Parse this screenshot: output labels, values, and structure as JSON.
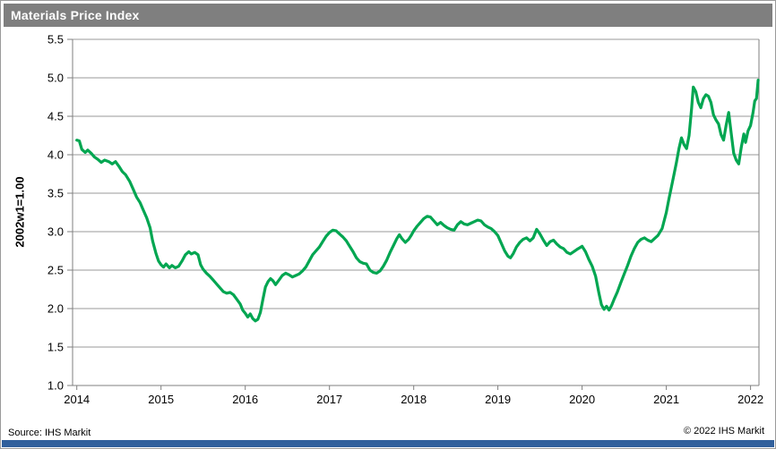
{
  "title": "Materials Price Index",
  "footer": {
    "source": "Source: IHS Markit",
    "copyright": "© 2022  IHS Markit"
  },
  "colors": {
    "line": "#00a651",
    "title_bar": "#7f7f7f",
    "title_text": "#ffffff",
    "grid": "#9a9a9a",
    "axis": "#7f7f7f",
    "bottom_bar": "#31609c"
  },
  "chart_data": {
    "type": "line",
    "title": "Materials Price Index",
    "xlabel": "",
    "ylabel": "2002w1=1.00",
    "ylim": [
      1.0,
      5.5
    ],
    "xlim": [
      2013.95,
      2022.1
    ],
    "yticks": [
      1.0,
      1.5,
      2.0,
      2.5,
      3.0,
      3.5,
      4.0,
      4.5,
      5.0,
      5.5
    ],
    "xticks": [
      2014,
      2015,
      2016,
      2017,
      2018,
      2019,
      2020,
      2021,
      2022
    ],
    "grid": "horizontal",
    "legend_position": "none",
    "series": [
      {
        "name": "Materials Price Index (2002w1=1.00)",
        "color": "#00a651",
        "points": [
          [
            2014.0,
            4.19
          ],
          [
            2014.03,
            4.18
          ],
          [
            2014.06,
            4.07
          ],
          [
            2014.1,
            4.03
          ],
          [
            2014.13,
            4.06
          ],
          [
            2014.17,
            4.02
          ],
          [
            2014.21,
            3.97
          ],
          [
            2014.25,
            3.94
          ],
          [
            2014.29,
            3.9
          ],
          [
            2014.33,
            3.93
          ],
          [
            2014.38,
            3.91
          ],
          [
            2014.42,
            3.88
          ],
          [
            2014.46,
            3.91
          ],
          [
            2014.5,
            3.85
          ],
          [
            2014.54,
            3.78
          ],
          [
            2014.58,
            3.74
          ],
          [
            2014.63,
            3.65
          ],
          [
            2014.67,
            3.55
          ],
          [
            2014.71,
            3.45
          ],
          [
            2014.75,
            3.38
          ],
          [
            2014.79,
            3.28
          ],
          [
            2014.83,
            3.18
          ],
          [
            2014.87,
            3.05
          ],
          [
            2014.9,
            2.88
          ],
          [
            2014.94,
            2.72
          ],
          [
            2014.97,
            2.62
          ],
          [
            2015.0,
            2.57
          ],
          [
            2015.03,
            2.54
          ],
          [
            2015.06,
            2.58
          ],
          [
            2015.1,
            2.53
          ],
          [
            2015.13,
            2.56
          ],
          [
            2015.17,
            2.53
          ],
          [
            2015.21,
            2.55
          ],
          [
            2015.25,
            2.62
          ],
          [
            2015.29,
            2.7
          ],
          [
            2015.33,
            2.74
          ],
          [
            2015.36,
            2.71
          ],
          [
            2015.4,
            2.73
          ],
          [
            2015.44,
            2.7
          ],
          [
            2015.47,
            2.57
          ],
          [
            2015.5,
            2.51
          ],
          [
            2015.54,
            2.46
          ],
          [
            2015.58,
            2.42
          ],
          [
            2015.62,
            2.37
          ],
          [
            2015.66,
            2.32
          ],
          [
            2015.7,
            2.27
          ],
          [
            2015.74,
            2.22
          ],
          [
            2015.78,
            2.2
          ],
          [
            2015.82,
            2.21
          ],
          [
            2015.86,
            2.18
          ],
          [
            2015.9,
            2.12
          ],
          [
            2015.94,
            2.06
          ],
          [
            2015.97,
            1.98
          ],
          [
            2016.0,
            1.94
          ],
          [
            2016.03,
            1.89
          ],
          [
            2016.06,
            1.93
          ],
          [
            2016.09,
            1.87
          ],
          [
            2016.12,
            1.84
          ],
          [
            2016.15,
            1.86
          ],
          [
            2016.18,
            1.95
          ],
          [
            2016.21,
            2.12
          ],
          [
            2016.24,
            2.28
          ],
          [
            2016.27,
            2.35
          ],
          [
            2016.3,
            2.39
          ],
          [
            2016.33,
            2.36
          ],
          [
            2016.36,
            2.31
          ],
          [
            2016.4,
            2.37
          ],
          [
            2016.44,
            2.43
          ],
          [
            2016.48,
            2.46
          ],
          [
            2016.52,
            2.44
          ],
          [
            2016.56,
            2.41
          ],
          [
            2016.6,
            2.43
          ],
          [
            2016.64,
            2.45
          ],
          [
            2016.68,
            2.49
          ],
          [
            2016.72,
            2.54
          ],
          [
            2016.76,
            2.62
          ],
          [
            2016.8,
            2.7
          ],
          [
            2016.84,
            2.75
          ],
          [
            2016.88,
            2.8
          ],
          [
            2016.92,
            2.87
          ],
          [
            2016.96,
            2.94
          ],
          [
            2017.0,
            2.99
          ],
          [
            2017.04,
            3.02
          ],
          [
            2017.08,
            3.01
          ],
          [
            2017.12,
            2.97
          ],
          [
            2017.16,
            2.93
          ],
          [
            2017.2,
            2.88
          ],
          [
            2017.24,
            2.81
          ],
          [
            2017.28,
            2.74
          ],
          [
            2017.32,
            2.66
          ],
          [
            2017.36,
            2.61
          ],
          [
            2017.4,
            2.59
          ],
          [
            2017.44,
            2.58
          ],
          [
            2017.48,
            2.5
          ],
          [
            2017.52,
            2.47
          ],
          [
            2017.56,
            2.46
          ],
          [
            2017.6,
            2.49
          ],
          [
            2017.64,
            2.55
          ],
          [
            2017.68,
            2.63
          ],
          [
            2017.72,
            2.73
          ],
          [
            2017.76,
            2.82
          ],
          [
            2017.8,
            2.91
          ],
          [
            2017.83,
            2.96
          ],
          [
            2017.86,
            2.91
          ],
          [
            2017.9,
            2.86
          ],
          [
            2017.94,
            2.9
          ],
          [
            2017.97,
            2.95
          ],
          [
            2018.0,
            3.01
          ],
          [
            2018.04,
            3.07
          ],
          [
            2018.08,
            3.12
          ],
          [
            2018.12,
            3.17
          ],
          [
            2018.16,
            3.2
          ],
          [
            2018.2,
            3.19
          ],
          [
            2018.24,
            3.14
          ],
          [
            2018.28,
            3.09
          ],
          [
            2018.32,
            3.12
          ],
          [
            2018.36,
            3.08
          ],
          [
            2018.4,
            3.05
          ],
          [
            2018.44,
            3.03
          ],
          [
            2018.48,
            3.02
          ],
          [
            2018.52,
            3.09
          ],
          [
            2018.56,
            3.13
          ],
          [
            2018.6,
            3.1
          ],
          [
            2018.64,
            3.09
          ],
          [
            2018.68,
            3.11
          ],
          [
            2018.72,
            3.13
          ],
          [
            2018.76,
            3.15
          ],
          [
            2018.8,
            3.14
          ],
          [
            2018.84,
            3.09
          ],
          [
            2018.88,
            3.06
          ],
          [
            2018.92,
            3.04
          ],
          [
            2018.96,
            3.0
          ],
          [
            2019.0,
            2.95
          ],
          [
            2019.04,
            2.85
          ],
          [
            2019.08,
            2.75
          ],
          [
            2019.12,
            2.68
          ],
          [
            2019.15,
            2.66
          ],
          [
            2019.18,
            2.71
          ],
          [
            2019.22,
            2.8
          ],
          [
            2019.26,
            2.86
          ],
          [
            2019.3,
            2.9
          ],
          [
            2019.34,
            2.92
          ],
          [
            2019.38,
            2.88
          ],
          [
            2019.42,
            2.92
          ],
          [
            2019.46,
            3.03
          ],
          [
            2019.5,
            2.97
          ],
          [
            2019.54,
            2.89
          ],
          [
            2019.58,
            2.82
          ],
          [
            2019.62,
            2.87
          ],
          [
            2019.66,
            2.89
          ],
          [
            2019.7,
            2.84
          ],
          [
            2019.74,
            2.8
          ],
          [
            2019.78,
            2.78
          ],
          [
            2019.82,
            2.73
          ],
          [
            2019.86,
            2.71
          ],
          [
            2019.9,
            2.74
          ],
          [
            2019.94,
            2.77
          ],
          [
            2019.97,
            2.79
          ],
          [
            2020.0,
            2.81
          ],
          [
            2020.04,
            2.74
          ],
          [
            2020.08,
            2.64
          ],
          [
            2020.12,
            2.55
          ],
          [
            2020.16,
            2.42
          ],
          [
            2020.2,
            2.2
          ],
          [
            2020.23,
            2.05
          ],
          [
            2020.26,
            1.99
          ],
          [
            2020.29,
            2.03
          ],
          [
            2020.32,
            1.98
          ],
          [
            2020.35,
            2.04
          ],
          [
            2020.38,
            2.12
          ],
          [
            2020.42,
            2.22
          ],
          [
            2020.46,
            2.34
          ],
          [
            2020.5,
            2.45
          ],
          [
            2020.54,
            2.56
          ],
          [
            2020.58,
            2.68
          ],
          [
            2020.62,
            2.78
          ],
          [
            2020.66,
            2.86
          ],
          [
            2020.7,
            2.9
          ],
          [
            2020.74,
            2.92
          ],
          [
            2020.78,
            2.89
          ],
          [
            2020.82,
            2.87
          ],
          [
            2020.86,
            2.91
          ],
          [
            2020.9,
            2.95
          ],
          [
            2020.95,
            3.04
          ],
          [
            2021.0,
            3.25
          ],
          [
            2021.03,
            3.42
          ],
          [
            2021.06,
            3.58
          ],
          [
            2021.09,
            3.74
          ],
          [
            2021.12,
            3.9
          ],
          [
            2021.15,
            4.08
          ],
          [
            2021.18,
            4.22
          ],
          [
            2021.21,
            4.13
          ],
          [
            2021.24,
            4.08
          ],
          [
            2021.27,
            4.25
          ],
          [
            2021.3,
            4.6
          ],
          [
            2021.32,
            4.88
          ],
          [
            2021.35,
            4.82
          ],
          [
            2021.38,
            4.68
          ],
          [
            2021.41,
            4.61
          ],
          [
            2021.44,
            4.73
          ],
          [
            2021.47,
            4.78
          ],
          [
            2021.5,
            4.76
          ],
          [
            2021.53,
            4.68
          ],
          [
            2021.56,
            4.52
          ],
          [
            2021.59,
            4.45
          ],
          [
            2021.62,
            4.4
          ],
          [
            2021.65,
            4.26
          ],
          [
            2021.68,
            4.19
          ],
          [
            2021.71,
            4.38
          ],
          [
            2021.74,
            4.55
          ],
          [
            2021.77,
            4.28
          ],
          [
            2021.8,
            4.02
          ],
          [
            2021.83,
            3.93
          ],
          [
            2021.86,
            3.88
          ],
          [
            2021.89,
            4.1
          ],
          [
            2021.92,
            4.27
          ],
          [
            2021.94,
            4.16
          ],
          [
            2021.97,
            4.31
          ],
          [
            2022.0,
            4.38
          ],
          [
            2022.03,
            4.55
          ],
          [
            2022.05,
            4.7
          ],
          [
            2022.07,
            4.73
          ],
          [
            2022.09,
            4.97
          ]
        ]
      }
    ]
  }
}
